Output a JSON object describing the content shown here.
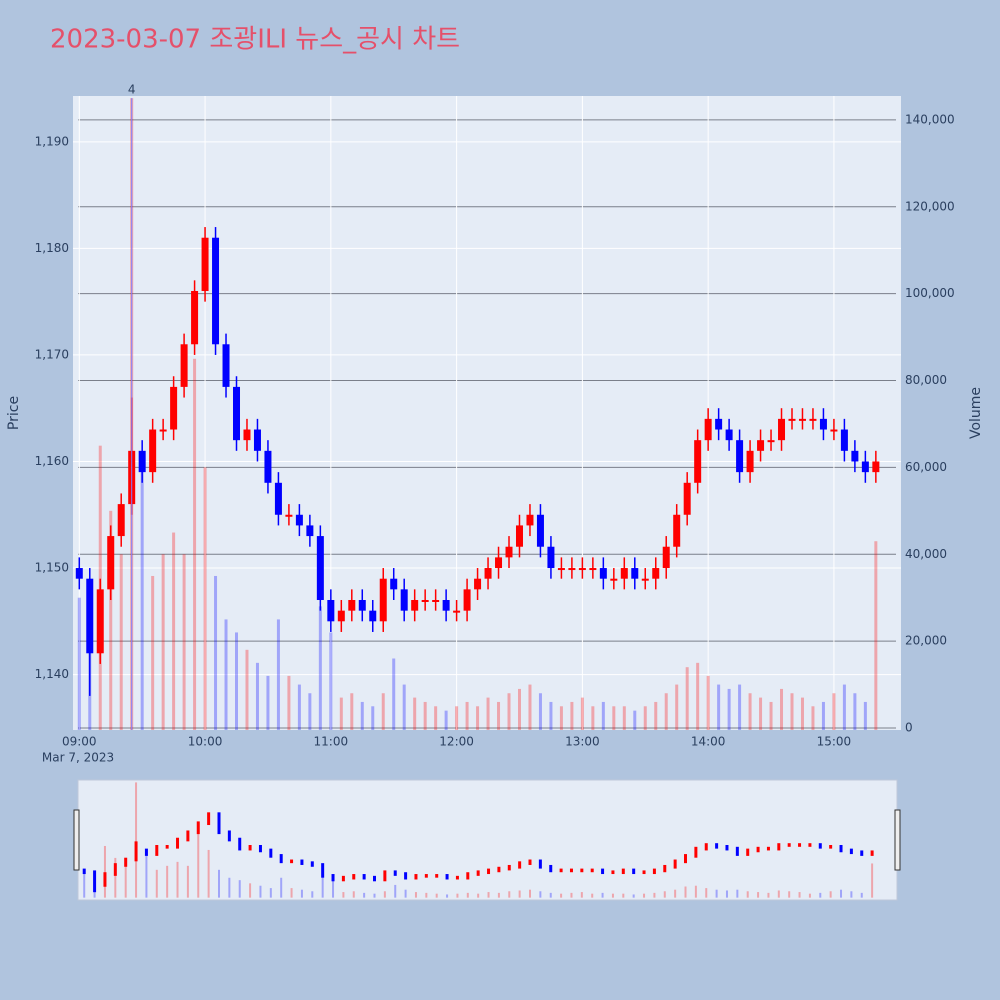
{
  "chart_data": {
    "type": "candlestick",
    "title": "2023-03-07 조광ILI 뉴스_공시 차트",
    "y_axis_label": "Price",
    "y2_axis_label": "Volume",
    "x_axis_date_label": "Mar 7, 2023",
    "increasing_color": "#ff0000",
    "decreasing_color": "#0000ff",
    "grid": true,
    "range_slider": true,
    "x": [
      "2023-03-07 09:00",
      "2023-03-07 09:05",
      "2023-03-07 09:10",
      "2023-03-07 09:15",
      "2023-03-07 09:20",
      "2023-03-07 09:25",
      "2023-03-07 09:30",
      "2023-03-07 09:35",
      "2023-03-07 09:40",
      "2023-03-07 09:45",
      "2023-03-07 09:50",
      "2023-03-07 09:55",
      "2023-03-07 10:00",
      "2023-03-07 10:05",
      "2023-03-07 10:10",
      "2023-03-07 10:15",
      "2023-03-07 10:20",
      "2023-03-07 10:25",
      "2023-03-07 10:30",
      "2023-03-07 10:35",
      "2023-03-07 10:40",
      "2023-03-07 10:45",
      "2023-03-07 10:50",
      "2023-03-07 10:55",
      "2023-03-07 11:00",
      "2023-03-07 11:05",
      "2023-03-07 11:10",
      "2023-03-07 11:15",
      "2023-03-07 11:20",
      "2023-03-07 11:25",
      "2023-03-07 11:30",
      "2023-03-07 11:35",
      "2023-03-07 11:40",
      "2023-03-07 11:45",
      "2023-03-07 11:50",
      "2023-03-07 11:55",
      "2023-03-07 12:00",
      "2023-03-07 12:05",
      "2023-03-07 12:10",
      "2023-03-07 12:15",
      "2023-03-07 12:20",
      "2023-03-07 12:25",
      "2023-03-07 12:30",
      "2023-03-07 12:35",
      "2023-03-07 12:40",
      "2023-03-07 12:45",
      "2023-03-07 12:50",
      "2023-03-07 12:55",
      "2023-03-07 13:00",
      "2023-03-07 13:05",
      "2023-03-07 13:10",
      "2023-03-07 13:15",
      "2023-03-07 13:20",
      "2023-03-07 13:25",
      "2023-03-07 13:30",
      "2023-03-07 13:35",
      "2023-03-07 13:40",
      "2023-03-07 13:45",
      "2023-03-07 13:50",
      "2023-03-07 13:55",
      "2023-03-07 14:00",
      "2023-03-07 14:05",
      "2023-03-07 14:10",
      "2023-03-07 14:15",
      "2023-03-07 14:20",
      "2023-03-07 14:25",
      "2023-03-07 14:30",
      "2023-03-07 14:35",
      "2023-03-07 14:40",
      "2023-03-07 14:45",
      "2023-03-07 14:50",
      "2023-03-07 14:55",
      "2023-03-07 15:00",
      "2023-03-07 15:05",
      "2023-03-07 15:10",
      "2023-03-07 15:15",
      "2023-03-07 15:20"
    ],
    "open": [
      1150,
      1149,
      1142,
      1148,
      1153,
      1156,
      1161,
      1159,
      1163,
      1163,
      1167,
      1171,
      1176,
      1181,
      1171,
      1167,
      1162,
      1163,
      1161,
      1158,
      1155,
      1155,
      1154,
      1153,
      1147,
      1145,
      1146,
      1147,
      1146,
      1145,
      1149,
      1148,
      1146,
      1147,
      1147,
      1147,
      1146,
      1146,
      1148,
      1149,
      1150,
      1151,
      1152,
      1154,
      1155,
      1152,
      1150,
      1150,
      1150,
      1150,
      1150,
      1149,
      1149,
      1150,
      1149,
      1149,
      1150,
      1152,
      1155,
      1158,
      1162,
      1164,
      1163,
      1162,
      1159,
      1161,
      1162,
      1162,
      1164,
      1164,
      1164,
      1164,
      1163,
      1163,
      1161,
      1160,
      1159
    ],
    "high": [
      1151,
      1150,
      1149,
      1154,
      1157,
      1166,
      1162,
      1164,
      1164,
      1168,
      1172,
      1177,
      1182,
      1182,
      1172,
      1168,
      1164,
      1164,
      1162,
      1159,
      1156,
      1156,
      1155,
      1154,
      1148,
      1147,
      1148,
      1148,
      1147,
      1150,
      1150,
      1149,
      1148,
      1148,
      1148,
      1148,
      1147,
      1149,
      1150,
      1151,
      1152,
      1153,
      1155,
      1156,
      1156,
      1153,
      1151,
      1151,
      1151,
      1151,
      1151,
      1150,
      1151,
      1151,
      1150,
      1151,
      1153,
      1156,
      1159,
      1163,
      1165,
      1165,
      1164,
      1163,
      1162,
      1163,
      1163,
      1165,
      1165,
      1165,
      1165,
      1165,
      1164,
      1164,
      1162,
      1161,
      1161
    ],
    "low": [
      1148,
      1138,
      1141,
      1147,
      1152,
      1155,
      1158,
      1158,
      1162,
      1162,
      1166,
      1170,
      1175,
      1170,
      1166,
      1161,
      1161,
      1160,
      1157,
      1154,
      1154,
      1153,
      1152,
      1146,
      1144,
      1144,
      1145,
      1145,
      1144,
      1144,
      1147,
      1145,
      1145,
      1146,
      1146,
      1145,
      1145,
      1145,
      1147,
      1148,
      1149,
      1150,
      1151,
      1153,
      1151,
      1149,
      1149,
      1149,
      1149,
      1149,
      1148,
      1148,
      1148,
      1148,
      1148,
      1148,
      1149,
      1151,
      1154,
      1157,
      1161,
      1162,
      1161,
      1158,
      1158,
      1160,
      1161,
      1161,
      1163,
      1163,
      1163,
      1162,
      1162,
      1160,
      1159,
      1158,
      1158
    ],
    "close": [
      1149,
      1142,
      1148,
      1153,
      1156,
      1161,
      1159,
      1163,
      1163,
      1167,
      1171,
      1176,
      1181,
      1171,
      1167,
      1162,
      1163,
      1161,
      1158,
      1155,
      1155,
      1154,
      1153,
      1147,
      1145,
      1146,
      1147,
      1146,
      1145,
      1149,
      1148,
      1146,
      1147,
      1147,
      1147,
      1146,
      1146,
      1148,
      1149,
      1150,
      1151,
      1152,
      1154,
      1155,
      1152,
      1150,
      1150,
      1150,
      1150,
      1150,
      1149,
      1149,
      1150,
      1149,
      1149,
      1150,
      1152,
      1155,
      1158,
      1162,
      1164,
      1163,
      1162,
      1159,
      1161,
      1162,
      1162,
      1164,
      1164,
      1164,
      1164,
      1163,
      1163,
      1161,
      1160,
      1159,
      1160
    ],
    "volume": [
      30000,
      25000,
      65000,
      50000,
      40000,
      145000,
      60000,
      35000,
      40000,
      45000,
      40000,
      85000,
      60000,
      35000,
      25000,
      22000,
      18000,
      15000,
      12000,
      25000,
      12000,
      10000,
      8000,
      28000,
      22000,
      7000,
      8000,
      6000,
      5000,
      8000,
      16000,
      10000,
      7000,
      6000,
      5000,
      4000,
      5000,
      6000,
      5000,
      7000,
      6000,
      8000,
      9000,
      10000,
      8000,
      6000,
      5000,
      6000,
      7000,
      5000,
      6000,
      5000,
      5000,
      4000,
      5000,
      6000,
      8000,
      10000,
      14000,
      15000,
      12000,
      10000,
      9000,
      10000,
      8000,
      7000,
      6000,
      9000,
      8000,
      7000,
      5000,
      6000,
      8000,
      10000,
      8000,
      6000,
      43000
    ],
    "annotation": {
      "x": "2023-03-07 09:25",
      "y": 145000,
      "text": "4"
    },
    "xlim": [
      "2023-03-07 08:57",
      "2023-03-07 15:32"
    ],
    "xticks": [
      {
        "value": "2023-03-07 09:00",
        "label": "09:00"
      },
      {
        "value": "2023-03-07 10:00",
        "label": "10:00"
      },
      {
        "value": "2023-03-07 11:00",
        "label": "11:00"
      },
      {
        "value": "2023-03-07 12:00",
        "label": "12:00"
      },
      {
        "value": "2023-03-07 13:00",
        "label": "13:00"
      },
      {
        "value": "2023-03-07 14:00",
        "label": "14:00"
      },
      {
        "value": "2023-03-07 15:00",
        "label": "15:00"
      }
    ],
    "ylim": [
      1134.8,
      1194.3
    ],
    "yticks": [
      {
        "value": 1140,
        "label": "1,140"
      },
      {
        "value": 1150,
        "label": "1,150"
      },
      {
        "value": 1160,
        "label": "1,160"
      },
      {
        "value": 1170,
        "label": "1,170"
      },
      {
        "value": 1180,
        "label": "1,180"
      },
      {
        "value": 1190,
        "label": "1,190"
      }
    ],
    "y2lim": [
      -460,
      145500
    ],
    "y2ticks": [
      0,
      {
        "value": 20000,
        "label": "20,000"
      },
      {
        "value": 40000,
        "label": "40,000"
      },
      {
        "value": 60000,
        "label": "60,000"
      },
      {
        "value": 80000,
        "label": "80,000"
      },
      {
        "value": 100000,
        "label": "100,000"
      },
      {
        "value": 120000,
        "label": "120,000"
      },
      {
        "value": 140000,
        "label": "140,000"
      }
    ]
  }
}
